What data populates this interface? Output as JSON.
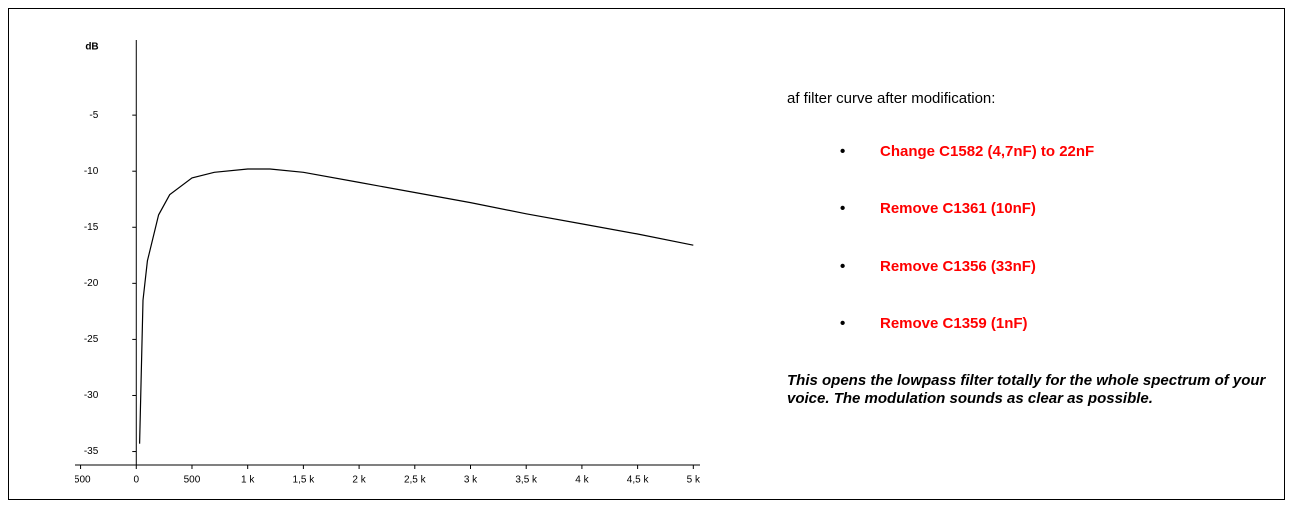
{
  "chart_data": {
    "type": "line",
    "ylabel": "dB",
    "x": [
      30,
      60,
      100,
      200,
      300,
      500,
      700,
      1000,
      1200,
      1500,
      2000,
      2500,
      3000,
      3500,
      4000,
      4500,
      5000
    ],
    "values": [
      -34.3,
      -21.5,
      -18,
      -13.9,
      -12.1,
      -10.6,
      -10.1,
      -9.8,
      -9.8,
      -10.1,
      -11.0,
      -11.9,
      -12.8,
      -13.8,
      -14.7,
      -15.6,
      -16.6
    ],
    "color": "#000000",
    "xlim": [
      -550,
      5060
    ],
    "ylim": [
      -36.2,
      1.7
    ],
    "xticks": [
      {
        "value": -500,
        "label": "-500"
      },
      0,
      500,
      {
        "value": 1000,
        "label": "1 k"
      },
      {
        "value": 1500,
        "label": "1,5 k"
      },
      {
        "value": 2000,
        "label": "2 k"
      },
      {
        "value": 2500,
        "label": "2,5 k"
      },
      {
        "value": 3000,
        "label": "3 k"
      },
      {
        "value": 3500,
        "label": "3,5 k"
      },
      {
        "value": 4000,
        "label": "4 k"
      },
      {
        "value": 4500,
        "label": "4,5 k"
      },
      {
        "value": 5000,
        "label": "5 k"
      }
    ],
    "yticks": [
      -5,
      -10,
      -15,
      -20,
      -25,
      -30,
      -35
    ]
  },
  "text": {
    "intro": "af filter curve after modification:",
    "bullets": [
      "Change C1582 (4,7nF) to 22nF",
      "Remove C1361 (10nF)",
      "Remove C1356 (33nF)",
      "Remove C1359 (1nF)"
    ],
    "note": "This opens the lowpass filter totally for the whole spectrum of your voice. The modulation sounds as clear as possible."
  }
}
